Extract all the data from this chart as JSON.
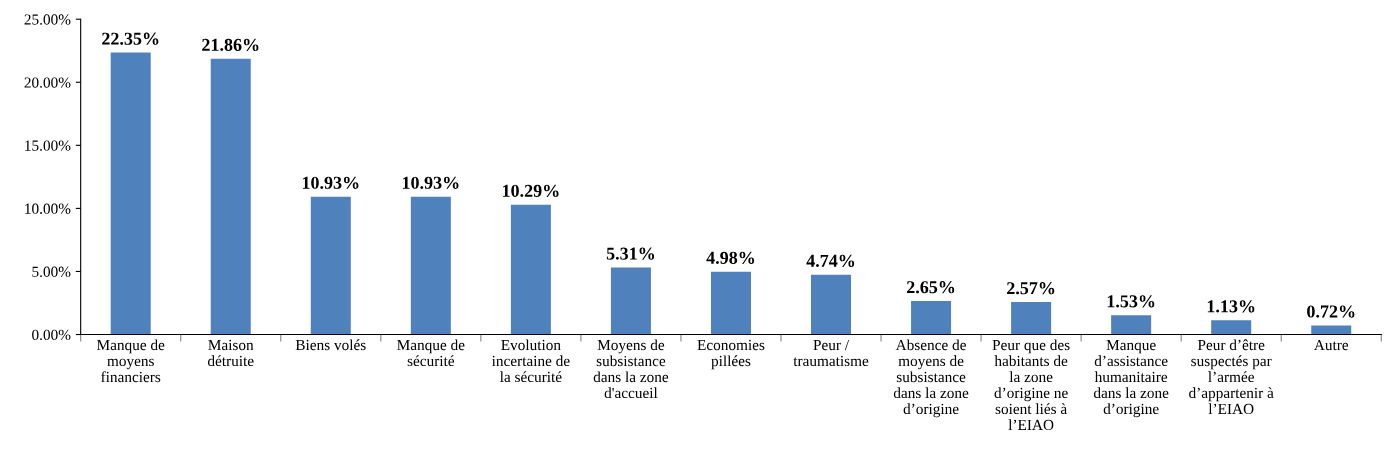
{
  "chart_data": {
    "type": "bar",
    "categories": [
      "Manque de\nmoyens\nfinanciers",
      "Maison\ndétruite",
      "Biens volés",
      "Manque de\nsécurité",
      "Evolution\nincertaine de\nla sécurité",
      "Moyens de\nsubsistance\ndans la zone\nd'accueil",
      "Economies\npillées",
      "Peur /\ntraumatisme",
      "Absence de\nmoyens de\nsubsistance\ndans la zone\nd’origine",
      "Peur que des\nhabitants de\nla zone\nd’origine ne\nsoient liés à\nl’EIAO",
      "Manque\nd’assistance\nhumanitaire\ndans la zone\nd’origine",
      "Peur d’être\nsuspectés par\nl’armée\nd’appartenir à\nl’EIAO",
      "Autre"
    ],
    "values": [
      22.35,
      21.86,
      10.93,
      10.93,
      10.29,
      5.31,
      4.98,
      4.74,
      2.65,
      2.57,
      1.53,
      1.13,
      0.72
    ],
    "value_labels": [
      "22.35%",
      "21.86%",
      "10.93%",
      "10.93%",
      "10.29%",
      "5.31%",
      "4.98%",
      "4.74%",
      "2.65%",
      "2.57%",
      "1.53%",
      "1.13%",
      "0.72%"
    ],
    "color": "#4f81bd",
    "ylim": [
      0,
      25
    ],
    "yticks": [
      {
        "value": 0,
        "label": "0.00%"
      },
      {
        "value": 5,
        "label": "5.00%"
      },
      {
        "value": 10,
        "label": "10.00%"
      },
      {
        "value": 15,
        "label": "15.00%"
      },
      {
        "value": 20,
        "label": "20.00%"
      },
      {
        "value": 25,
        "label": "25.00%"
      }
    ],
    "grid": false,
    "legend": false
  }
}
